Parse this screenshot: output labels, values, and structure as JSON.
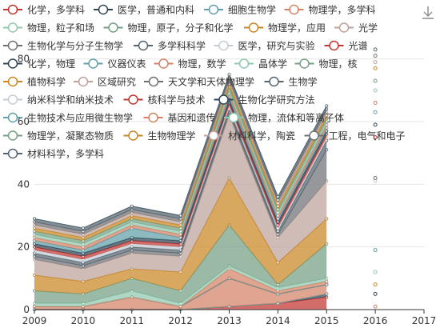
{
  "toolbox": {
    "icon": "download-icon"
  },
  "chart_data": {
    "type": "area",
    "stacked": true,
    "title": "",
    "xlabel": "",
    "ylabel": "",
    "x": [
      "2009",
      "2010",
      "2011",
      "2012",
      "2013",
      "2014",
      "2015",
      "2016",
      "2017"
    ],
    "ylim": [
      0,
      84
    ],
    "yticks": [
      0,
      20,
      40,
      60,
      80
    ],
    "grid": true,
    "legend_position": "top",
    "series": [
      {
        "name": "化学，多学科",
        "color": "#c23531",
        "values": [
          0,
          0,
          0,
          0,
          1,
          2,
          4,
          0,
          null
        ]
      },
      {
        "name": "医学，普通和内科",
        "color": "#2f4554",
        "values": [
          0,
          0,
          0,
          0,
          0,
          0,
          1,
          null,
          null
        ]
      },
      {
        "name": "细胞生物学",
        "color": "#61a0a8",
        "values": [
          0,
          0,
          0,
          0,
          0,
          0,
          0,
          null,
          null
        ]
      },
      {
        "name": "物理学，多学科",
        "color": "#d48265",
        "values": [
          1,
          1,
          4,
          1,
          9,
          3,
          3,
          1,
          null
        ]
      },
      {
        "name": "物理，粒子和场",
        "color": "#91c7ae",
        "values": [
          0,
          0,
          0,
          0,
          0,
          0,
          0,
          null,
          null
        ]
      },
      {
        "name": "物理，原子，分子和化学",
        "color": "#749f83",
        "values": [
          0,
          0,
          0,
          0,
          0,
          0,
          0,
          null,
          null
        ]
      },
      {
        "name": "物理学，应用",
        "color": "#ca8622",
        "values": [
          0,
          0,
          0,
          0,
          0,
          0,
          0,
          null,
          null
        ]
      },
      {
        "name": "光学",
        "color": "#bda29a",
        "values": [
          0,
          0,
          0,
          0,
          0,
          0,
          0,
          null,
          null
        ]
      },
      {
        "name": "生物化学与分子生物学",
        "color": "#6e7074",
        "values": [
          0,
          0,
          0,
          0,
          0,
          0,
          0,
          null,
          null
        ]
      },
      {
        "name": "多学科科学",
        "color": "#546570",
        "values": [
          0,
          0,
          0,
          0,
          0,
          0,
          0,
          null,
          null
        ]
      },
      {
        "name": "医学，研究与实验",
        "color": "#c4ccd3",
        "values": [
          0,
          0,
          0,
          0,
          0,
          0,
          0,
          null,
          null
        ]
      },
      {
        "name": "光谱",
        "color": "#c23531",
        "values": [
          0,
          0,
          0,
          0,
          0,
          0,
          0,
          null,
          null
        ]
      },
      {
        "name": "化学，物理",
        "color": "#2f4554",
        "values": [
          0,
          0,
          0,
          0,
          0,
          0,
          0,
          null,
          null
        ]
      },
      {
        "name": "仪器仪表",
        "color": "#61a0a8",
        "values": [
          0,
          0,
          0,
          0,
          0,
          0,
          0,
          null,
          null
        ]
      },
      {
        "name": "物理，数学",
        "color": "#d48265",
        "values": [
          0,
          0,
          0,
          0,
          3,
          1,
          1,
          null,
          null
        ]
      },
      {
        "name": "晶体学",
        "color": "#91c7ae",
        "values": [
          1,
          1,
          2,
          1,
          1,
          1,
          1,
          null,
          null
        ]
      },
      {
        "name": "物理，核",
        "color": "#749f83",
        "values": [
          4,
          3,
          4,
          4,
          13,
          1,
          11,
          null,
          null
        ]
      },
      {
        "name": "植物科学",
        "color": "#ca8622",
        "values": [
          5,
          4,
          3,
          6,
          15,
          7,
          8,
          null,
          null
        ]
      },
      {
        "name": "区域研究",
        "color": "#bda29a",
        "values": [
          5,
          4,
          5,
          5,
          20,
          8,
          12,
          null,
          null
        ]
      },
      {
        "name": "天文学和天体物理学",
        "color": "#6e7074",
        "values": [
          1,
          1,
          1,
          1,
          1,
          1,
          10,
          null,
          null
        ]
      },
      {
        "name": "生物学",
        "color": "#546570",
        "values": [
          1,
          1,
          1,
          1,
          1,
          1,
          3,
          null,
          null
        ]
      },
      {
        "name": "纳米科学和纳米技术",
        "color": "#c4ccd3",
        "values": [
          1,
          1,
          1,
          1,
          1,
          1,
          1,
          null,
          null
        ]
      },
      {
        "name": "核科学与技术",
        "color": "#c23531",
        "values": [
          1,
          1,
          1,
          1,
          1,
          1,
          1,
          null,
          null
        ]
      },
      {
        "name": "生物化学研究方法",
        "color": "#2f4554",
        "values": [
          1,
          1,
          1,
          1,
          1,
          1,
          1,
          null,
          null
        ]
      },
      {
        "name": "生物技术与应用微生物学",
        "color": "#61a0a8",
        "values": [
          1,
          1,
          3,
          1,
          1,
          1,
          1,
          null,
          null
        ]
      },
      {
        "name": "基因和遗传",
        "color": "#d48265",
        "values": [
          1,
          1,
          1,
          1,
          1,
          1,
          1,
          null,
          null
        ]
      },
      {
        "name": "物理，流体和等离子体",
        "color": "#91c7ae",
        "values": [
          1,
          1,
          1,
          1,
          1,
          1,
          1,
          null,
          null
        ]
      },
      {
        "name": "物理学，凝聚态物质",
        "color": "#749f83",
        "values": [
          1,
          1,
          1,
          1,
          1,
          1,
          1,
          null,
          null
        ]
      },
      {
        "name": "生物物理学",
        "color": "#ca8622",
        "values": [
          1,
          1,
          1,
          1,
          1,
          1,
          1,
          null,
          null
        ]
      },
      {
        "name": "材料科学，陶瓷",
        "color": "#bda29a",
        "values": [
          1,
          1,
          1,
          1,
          1,
          1,
          1,
          null,
          null
        ]
      },
      {
        "name": "工程，电气和电子",
        "color": "#6e7074",
        "values": [
          1,
          1,
          1,
          1,
          1,
          1,
          1,
          null,
          null
        ]
      },
      {
        "name": "材料科学，多学科",
        "color": "#546570",
        "values": [
          1,
          1,
          1,
          1,
          1,
          1,
          1,
          null,
          null
        ]
      }
    ],
    "dots_2016": [
      {
        "value": 1,
        "color": "#d48265"
      },
      {
        "value": 5,
        "color": "#2f4554"
      },
      {
        "value": 8,
        "color": "#ca8622"
      },
      {
        "value": 12,
        "color": "#91c7ae"
      },
      {
        "value": 19,
        "color": "#61a0a8"
      },
      {
        "value": 41,
        "color": "#c4ccd3"
      },
      {
        "value": 42,
        "color": "#6e7074"
      },
      {
        "value": 55,
        "color": "#c23531"
      },
      {
        "value": 59,
        "color": "#2f4554"
      },
      {
        "value": 63,
        "color": "#61a0a8"
      },
      {
        "value": 66,
        "color": "#d48265"
      },
      {
        "value": 70,
        "color": "#91c7ae"
      },
      {
        "value": 73,
        "color": "#749f83"
      },
      {
        "value": 77,
        "color": "#ca8622"
      },
      {
        "value": 79,
        "color": "#bda29a"
      },
      {
        "value": 81,
        "color": "#6e7074"
      },
      {
        "value": 83,
        "color": "#546570"
      }
    ]
  }
}
